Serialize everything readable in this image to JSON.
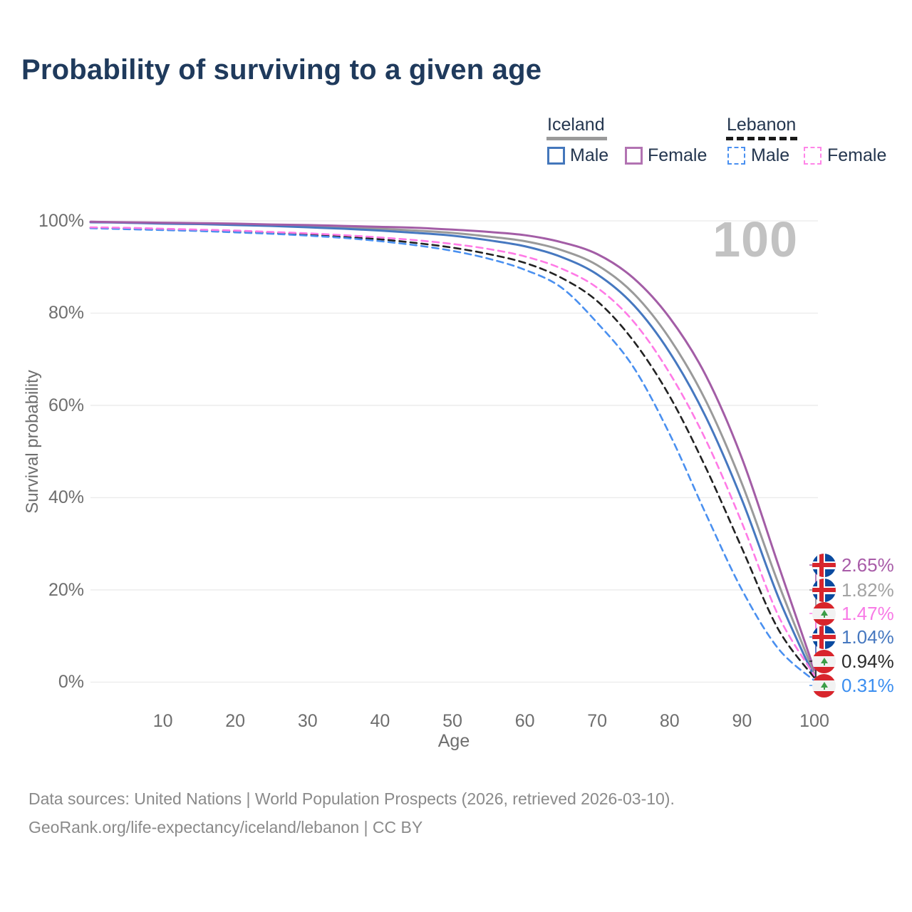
{
  "title": "Probability of surviving to a given age",
  "watermark": "100",
  "legend": {
    "groups": [
      {
        "country": "Iceland",
        "line_style": "solid",
        "underline_color": "#9a9a9a",
        "items": [
          {
            "label": "Male",
            "swatch_color": "#4477bb",
            "swatch_style": "solid"
          },
          {
            "label": "Female",
            "swatch_color": "#b273b2",
            "swatch_style": "solid"
          }
        ]
      },
      {
        "country": "Lebanon",
        "line_style": "dashed",
        "underline_color": "#1a1a1a",
        "items": [
          {
            "label": "Male",
            "swatch_color": "#4a90f0",
            "swatch_style": "dashed"
          },
          {
            "label": "Female",
            "swatch_color": "#ff85e8",
            "swatch_style": "dashed"
          }
        ]
      }
    ]
  },
  "axes": {
    "y": {
      "label": "Survival probability",
      "ticks": [
        "100%",
        "80%",
        "60%",
        "40%",
        "20%",
        "0%"
      ],
      "tick_values": [
        100,
        80,
        60,
        40,
        20,
        0
      ]
    },
    "x": {
      "label": "Age",
      "ticks": [
        "10",
        "20",
        "30",
        "40",
        "50",
        "60",
        "70",
        "80",
        "90",
        "100"
      ],
      "tick_values": [
        10,
        20,
        30,
        40,
        50,
        60,
        70,
        80,
        90,
        100
      ]
    }
  },
  "end_labels": [
    {
      "flag": "iceland",
      "value": "2.65%",
      "color": "#a85ca8"
    },
    {
      "flag": "iceland",
      "value": "1.82%",
      "color": "#a3a3a3"
    },
    {
      "flag": "lebanon",
      "value": "1.47%",
      "color": "#f87ae6"
    },
    {
      "flag": "iceland",
      "value": "1.04%",
      "color": "#4678c0"
    },
    {
      "flag": "lebanon",
      "value": "0.94%",
      "color": "#2b2b2b"
    },
    {
      "flag": "lebanon",
      "value": "0.31%",
      "color": "#3b8ef0"
    }
  ],
  "footer": {
    "line1": "Data sources: United Nations | World Population Prospects (2026, retrieved 2026-03-10).",
    "line2": "GeoRank.org/life-expectancy/iceland/lebanon | CC BY"
  },
  "chart_data": {
    "type": "line",
    "title": "Probability of surviving to a given age",
    "xlabel": "Age",
    "ylabel": "Survival probability",
    "xlim": [
      0,
      100.5
    ],
    "ylim_percent": [
      0,
      100
    ],
    "grid": "horizontal-only",
    "legend_position": "top-right",
    "hover_age_indicator": "100",
    "x": [
      0,
      5,
      10,
      15,
      20,
      25,
      30,
      35,
      40,
      45,
      50,
      55,
      60,
      65,
      70,
      75,
      80,
      85,
      90,
      95,
      100
    ],
    "series": [
      {
        "name": "Iceland Female",
        "country": "Iceland",
        "sex": "Female",
        "style": "solid",
        "color": "#a35da6",
        "end_value_label": "2.65%",
        "values": [
          99.8,
          99.7,
          99.6,
          99.5,
          99.4,
          99.2,
          99.1,
          98.9,
          98.7,
          98.5,
          98.1,
          97.6,
          96.9,
          95.4,
          92.8,
          87.6,
          79.0,
          66.5,
          48.5,
          25.5,
          2.65
        ]
      },
      {
        "name": "Iceland Both sexes",
        "country": "Iceland",
        "sex": "Both sexes",
        "style": "solid",
        "color": "#9a9a9a",
        "end_value_label": "1.82%",
        "values": [
          99.8,
          99.6,
          99.5,
          99.4,
          99.2,
          99.0,
          98.8,
          98.6,
          98.3,
          97.9,
          97.4,
          96.6,
          95.6,
          93.7,
          90.4,
          84.3,
          74.5,
          61.0,
          43.0,
          21.5,
          1.82
        ]
      },
      {
        "name": "Lebanon Female",
        "country": "Lebanon",
        "sex": "Female",
        "style": "dashed",
        "color": "#ff7ae6",
        "end_value_label": "1.47%",
        "values": [
          98.6,
          98.5,
          98.3,
          98.1,
          97.9,
          97.6,
          97.3,
          96.9,
          96.4,
          95.8,
          95.0,
          93.9,
          92.3,
          89.7,
          85.5,
          78.2,
          67.0,
          52.5,
          34.5,
          14.5,
          1.47
        ]
      },
      {
        "name": "Iceland Male",
        "country": "Iceland",
        "sex": "Male",
        "style": "solid",
        "color": "#4678c0",
        "end_value_label": "1.04%",
        "values": [
          99.7,
          99.6,
          99.4,
          99.3,
          99.1,
          98.9,
          98.6,
          98.3,
          97.9,
          97.4,
          96.8,
          95.8,
          94.5,
          92.2,
          88.4,
          81.8,
          71.5,
          57.5,
          39.5,
          18.5,
          1.04
        ]
      },
      {
        "name": "Lebanon Both sexes",
        "country": "Lebanon",
        "sex": "Both sexes",
        "style": "dashed",
        "color": "#222222",
        "end_value_label": "0.94%",
        "values": [
          98.5,
          98.3,
          98.1,
          97.9,
          97.7,
          97.4,
          97.0,
          96.5,
          96.0,
          95.2,
          94.2,
          92.8,
          90.9,
          87.7,
          82.6,
          74.0,
          62.0,
          46.5,
          29.0,
          11.5,
          0.94
        ]
      },
      {
        "name": "Lebanon Male",
        "country": "Lebanon",
        "sex": "Male",
        "style": "dashed",
        "color": "#4a90f0",
        "end_value_label": "0.31%",
        "values": [
          98.4,
          98.2,
          98.0,
          97.8,
          97.5,
          97.2,
          96.8,
          96.3,
          95.6,
          94.7,
          93.5,
          91.8,
          89.4,
          85.6,
          77.9,
          68.3,
          53.8,
          36.5,
          20.0,
          7.3,
          0.31
        ]
      }
    ]
  }
}
